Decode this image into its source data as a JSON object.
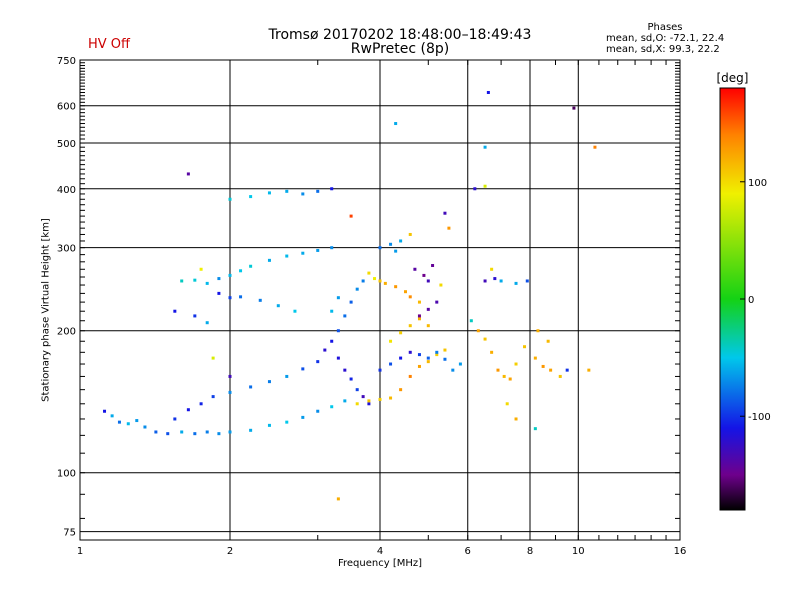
{
  "header": {
    "title_line1": "Tromsø 20170202 18:48:00–18:49:43",
    "title_line2": "RwPretec (8p)",
    "status": "HV Off",
    "phases_title": "Phases",
    "phases_o": "mean, sd,O: -72.1, 22.4",
    "phases_x": "mean, sd,X:  99.3, 22.2"
  },
  "colors": {
    "status": "#cc0000",
    "grid": "#000000"
  },
  "chart_data": {
    "type": "scatter",
    "title": "Tromsø 20170202 18:48:00–18:49:43",
    "subtitle": "RwPretec (8p)",
    "xlabel": "Frequency [MHz]",
    "ylabel": "Stationary phase Virtual Height [km]",
    "x_scale": "log",
    "y_scale": "log",
    "xlim": [
      1,
      16
    ],
    "ylim": [
      72,
      750
    ],
    "x_ticks": [
      "1",
      "2",
      "4",
      "6",
      "8",
      "10",
      "16"
    ],
    "y_ticks": [
      "75",
      "100",
      "200",
      "300",
      "400",
      "500",
      "600",
      "750"
    ],
    "grid": true,
    "colorbar": {
      "label": "[deg]",
      "min": -180,
      "max": 180,
      "ticks": [
        "100",
        "0",
        "-100"
      ]
    },
    "series": [
      {
        "points": [
          [
            1.12,
            135,
            -110
          ],
          [
            1.16,
            132,
            -60
          ],
          [
            1.2,
            128,
            -80
          ],
          [
            1.25,
            127,
            -55
          ],
          [
            1.3,
            129,
            -65
          ],
          [
            1.35,
            125,
            -70
          ],
          [
            1.42,
            122,
            -85
          ],
          [
            1.5,
            121,
            -90
          ],
          [
            1.6,
            122,
            -60
          ],
          [
            1.7,
            121,
            -80
          ],
          [
            1.8,
            122,
            -75
          ],
          [
            1.9,
            121,
            -70
          ],
          [
            2.0,
            122,
            -65
          ],
          [
            2.2,
            123,
            -60
          ],
          [
            2.4,
            126,
            -55
          ],
          [
            2.6,
            128,
            -50
          ],
          [
            2.8,
            131,
            -65
          ],
          [
            3.0,
            135,
            -70
          ],
          [
            3.2,
            138,
            -50
          ],
          [
            3.4,
            142,
            -60
          ],
          [
            1.55,
            130,
            -100
          ],
          [
            1.65,
            136,
            -110
          ],
          [
            1.75,
            140,
            -105
          ],
          [
            1.85,
            145,
            -95
          ],
          [
            2.0,
            148,
            -70
          ],
          [
            2.2,
            152,
            -80
          ],
          [
            2.4,
            156,
            -75
          ],
          [
            2.6,
            160,
            -65
          ],
          [
            2.8,
            166,
            -90
          ],
          [
            3.0,
            172,
            -100
          ],
          [
            3.1,
            182,
            -120
          ],
          [
            3.2,
            190,
            -110
          ],
          [
            3.3,
            175,
            -115
          ],
          [
            3.4,
            165,
            -120
          ],
          [
            3.5,
            158,
            -105
          ],
          [
            3.6,
            150,
            -95
          ],
          [
            3.7,
            145,
            -130
          ],
          [
            3.8,
            140,
            -115
          ],
          [
            3.3,
            200,
            -90
          ],
          [
            3.4,
            215,
            -80
          ],
          [
            3.5,
            230,
            -85
          ],
          [
            3.6,
            245,
            -70
          ],
          [
            3.7,
            255,
            -75
          ],
          [
            3.3,
            235,
            -65
          ],
          [
            3.2,
            220,
            -55
          ],
          [
            1.6,
            255,
            -40
          ],
          [
            1.7,
            256,
            -45
          ],
          [
            1.8,
            252,
            -55
          ],
          [
            1.9,
            258,
            -70
          ],
          [
            2.0,
            262,
            -55
          ],
          [
            2.1,
            268,
            -50
          ],
          [
            2.2,
            274,
            -45
          ],
          [
            2.4,
            282,
            -60
          ],
          [
            2.6,
            288,
            -55
          ],
          [
            2.8,
            292,
            -60
          ],
          [
            3.0,
            296,
            -65
          ],
          [
            3.2,
            300,
            -70
          ],
          [
            1.9,
            240,
            -110
          ],
          [
            2.0,
            235,
            -95
          ],
          [
            2.1,
            236,
            -80
          ],
          [
            2.3,
            232,
            -75
          ],
          [
            2.5,
            226,
            -60
          ],
          [
            2.7,
            220,
            -50
          ],
          [
            2.0,
            380,
            -45
          ],
          [
            2.2,
            385,
            -50
          ],
          [
            2.4,
            392,
            -55
          ],
          [
            2.6,
            395,
            -60
          ],
          [
            2.8,
            390,
            -70
          ],
          [
            3.0,
            395,
            -80
          ],
          [
            3.2,
            400,
            -110
          ],
          [
            1.65,
            430,
            -140
          ],
          [
            3.5,
            350,
            160
          ],
          [
            3.8,
            265,
            100
          ],
          [
            3.9,
            258,
            90
          ],
          [
            4.0,
            255,
            110
          ],
          [
            4.1,
            252,
            120
          ],
          [
            4.3,
            248,
            130
          ],
          [
            4.5,
            242,
            125
          ],
          [
            4.6,
            236,
            135
          ],
          [
            4.8,
            230,
            115
          ],
          [
            4.0,
            300,
            -80
          ],
          [
            4.2,
            305,
            -70
          ],
          [
            4.3,
            295,
            -65
          ],
          [
            4.4,
            310,
            -60
          ],
          [
            4.6,
            320,
            110
          ],
          [
            4.7,
            270,
            -140
          ],
          [
            4.9,
            262,
            -150
          ],
          [
            5.0,
            255,
            -130
          ],
          [
            5.1,
            275,
            -145
          ],
          [
            5.3,
            250,
            100
          ],
          [
            3.6,
            140,
            100
          ],
          [
            3.8,
            142,
            110
          ],
          [
            4.0,
            143,
            105
          ],
          [
            4.2,
            144,
            115
          ],
          [
            4.4,
            150,
            130
          ],
          [
            4.6,
            160,
            140
          ],
          [
            4.8,
            168,
            125
          ],
          [
            5.0,
            172,
            115
          ],
          [
            5.2,
            178,
            105
          ],
          [
            5.4,
            182,
            110
          ],
          [
            4.0,
            165,
            -100
          ],
          [
            4.2,
            170,
            -90
          ],
          [
            4.4,
            175,
            -110
          ],
          [
            4.6,
            180,
            -120
          ],
          [
            4.8,
            178,
            -95
          ],
          [
            5.0,
            175,
            -85
          ],
          [
            5.2,
            180,
            -75
          ],
          [
            5.4,
            174,
            -80
          ],
          [
            5.6,
            165,
            -70
          ],
          [
            5.8,
            170,
            -65
          ],
          [
            4.2,
            190,
            95
          ],
          [
            4.4,
            198,
            105
          ],
          [
            4.6,
            205,
            110
          ],
          [
            4.8,
            212,
            120
          ],
          [
            5.0,
            205,
            115
          ],
          [
            4.8,
            215,
            -150
          ],
          [
            5.0,
            222,
            -140
          ],
          [
            5.2,
            230,
            -135
          ],
          [
            5.4,
            355,
            -130
          ],
          [
            5.5,
            330,
            130
          ],
          [
            6.3,
            200,
            125
          ],
          [
            6.5,
            192,
            110
          ],
          [
            6.7,
            180,
            120
          ],
          [
            6.9,
            165,
            130
          ],
          [
            7.1,
            160,
            115
          ],
          [
            7.3,
            158,
            125
          ],
          [
            7.5,
            170,
            105
          ],
          [
            7.8,
            185,
            110
          ],
          [
            8.2,
            175,
            120
          ],
          [
            8.5,
            168,
            130
          ],
          [
            8.8,
            165,
            125
          ],
          [
            9.2,
            160,
            110
          ],
          [
            9.5,
            165,
            -100
          ],
          [
            8.3,
            200,
            120
          ],
          [
            8.7,
            190,
            115
          ],
          [
            6.5,
            255,
            -130
          ],
          [
            6.8,
            258,
            -120
          ],
          [
            7.0,
            255,
            -60
          ],
          [
            7.5,
            252,
            -60
          ],
          [
            7.9,
            255,
            -90
          ],
          [
            6.2,
            400,
            -120
          ],
          [
            6.5,
            405,
            80
          ],
          [
            6.5,
            490,
            -60
          ],
          [
            6.6,
            640,
            -110
          ],
          [
            6.7,
            270,
            100
          ],
          [
            6.1,
            210,
            -40
          ],
          [
            7.2,
            140,
            100
          ],
          [
            7.5,
            130,
            120
          ],
          [
            8.2,
            124,
            -40
          ],
          [
            10.5,
            165,
            120
          ],
          [
            10.8,
            490,
            140
          ],
          [
            9.8,
            593,
            -160
          ],
          [
            4.3,
            550,
            -60
          ],
          [
            3.3,
            88,
            120
          ],
          [
            1.55,
            220,
            -110
          ],
          [
            1.7,
            215,
            -100
          ],
          [
            1.8,
            208,
            -60
          ],
          [
            1.85,
            175,
            80
          ],
          [
            1.75,
            270,
            90
          ],
          [
            2.0,
            160,
            -130
          ]
        ]
      }
    ]
  }
}
